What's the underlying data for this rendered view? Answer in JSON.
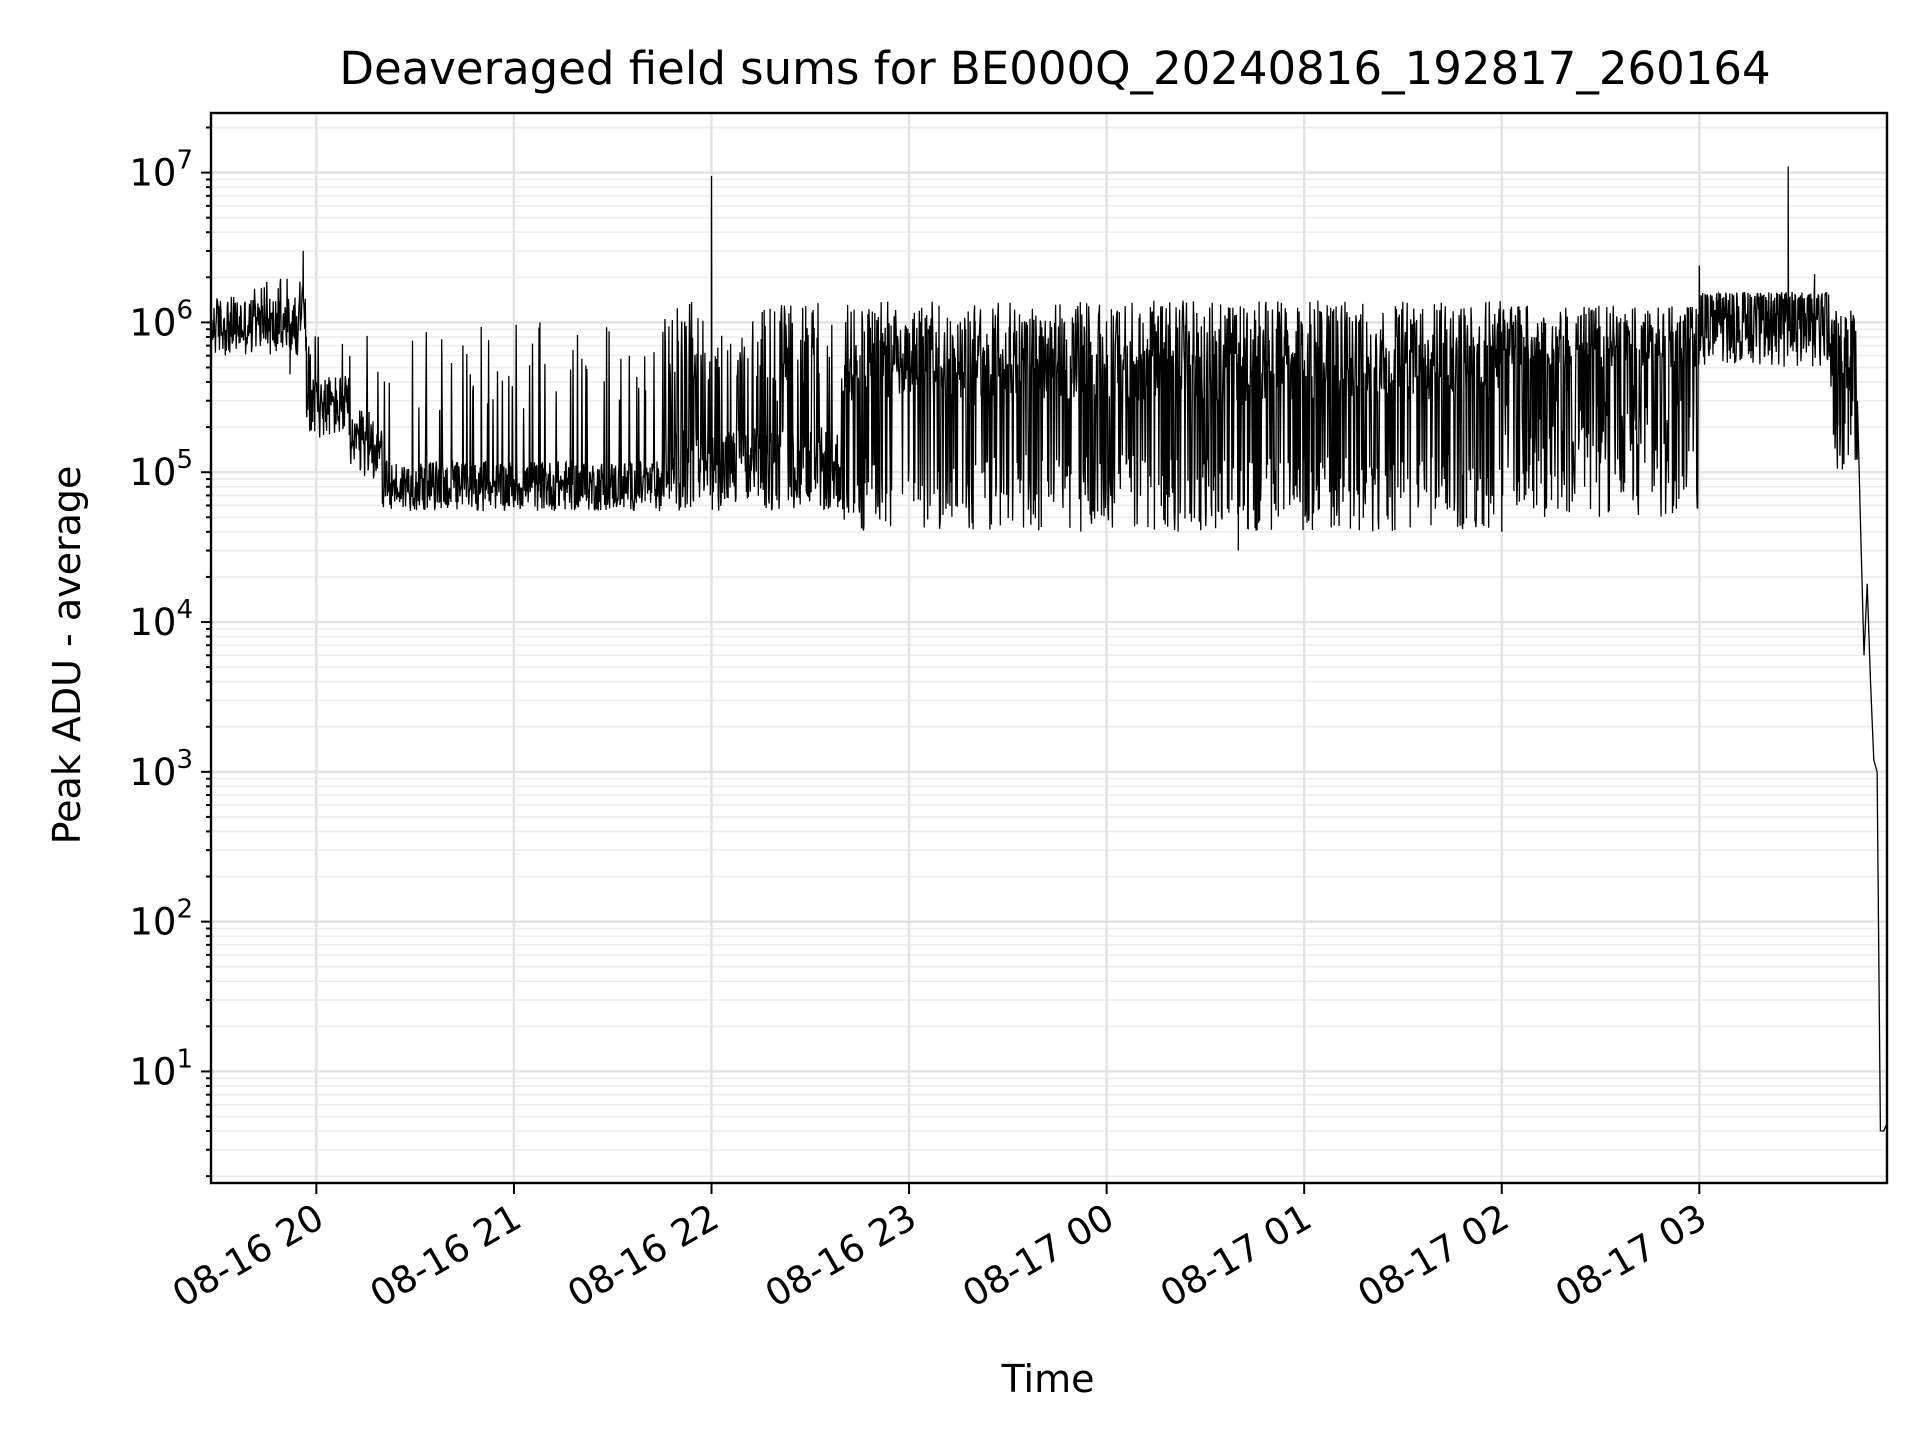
{
  "chart_data": {
    "type": "line",
    "title": "Deaveraged field sums for BE000Q_20240816_192817_260164",
    "xlabel": "Time",
    "ylabel": "Peak ADU - average",
    "yscale": "log",
    "grid": true,
    "line_color": "#000000",
    "x_range": [
      "2024-08-16 19:28",
      "2024-08-17 03:57"
    ],
    "ylim": [
      1.8,
      25000000
    ],
    "x_ticks": [
      {
        "time": "2024-08-16 20:00",
        "label": "08-16 20"
      },
      {
        "time": "2024-08-16 21:00",
        "label": "08-16 21"
      },
      {
        "time": "2024-08-16 22:00",
        "label": "08-16 22"
      },
      {
        "time": "2024-08-16 23:00",
        "label": "08-16 23"
      },
      {
        "time": "2024-08-17 00:00",
        "label": "08-17 00"
      },
      {
        "time": "2024-08-17 01:00",
        "label": "08-17 01"
      },
      {
        "time": "2024-08-17 02:00",
        "label": "08-17 02"
      },
      {
        "time": "2024-08-17 03:00",
        "label": "08-17 03"
      }
    ],
    "y_ticks": [
      {
        "value": 10,
        "base": "10",
        "exp": "1"
      },
      {
        "value": 100,
        "base": "10",
        "exp": "2"
      },
      {
        "value": 1000,
        "base": "10",
        "exp": "3"
      },
      {
        "value": 10000,
        "base": "10",
        "exp": "4"
      },
      {
        "value": 100000,
        "base": "10",
        "exp": "5"
      },
      {
        "value": 1000000,
        "base": "10",
        "exp": "6"
      },
      {
        "value": 10000000,
        "base": "10",
        "exp": "7"
      }
    ],
    "series": [
      {
        "points": [
          [
            "2024-08-16 19:28",
            1000000
          ],
          [
            "2024-08-16 19:31",
            1200000
          ],
          [
            "2024-08-16 19:34",
            800000
          ],
          [
            "2024-08-16 19:37",
            1300000
          ],
          [
            "2024-08-16 19:40",
            900000
          ],
          [
            "2024-08-16 19:43",
            1200000
          ],
          [
            "2024-08-16 19:46",
            700000
          ],
          [
            "2024-08-16 19:49",
            1800000
          ],
          [
            "2024-08-16 19:52",
            450000
          ],
          [
            "2024-08-16 19:54",
            1100000
          ],
          [
            "2024-08-16 19:56",
            3000000
          ],
          [
            "2024-08-16 19:57",
            250000
          ],
          [
            "2024-08-16 20:00",
            400000
          ],
          [
            "2024-08-16 20:04",
            280000
          ],
          [
            "2024-08-16 20:08",
            240000
          ],
          [
            "2024-08-16 20:12",
            180000
          ],
          [
            "2024-08-16 20:16",
            130000
          ],
          [
            "2024-08-16 20:20",
            100000
          ],
          [
            "2024-08-16 20:24",
            75000
          ],
          [
            "2024-08-16 20:30",
            80000
          ],
          [
            "2024-08-16 20:40",
            75000
          ],
          [
            "2024-08-16 20:50",
            85000
          ],
          [
            "2024-08-16 21:00",
            90000
          ],
          [
            "2024-08-16 21:10",
            80000
          ],
          [
            "2024-08-16 21:20",
            75000
          ],
          [
            "2024-08-16 21:30",
            90000
          ],
          [
            "2024-08-16 21:40",
            110000
          ],
          [
            "2024-08-16 21:50",
            140000
          ],
          [
            "2024-08-16 22:00",
            9500000
          ],
          [
            "2024-08-16 22:05",
            250000
          ],
          [
            "2024-08-16 22:20",
            300000
          ],
          [
            "2024-08-16 22:40",
            350000
          ],
          [
            "2024-08-16 23:00",
            300000
          ],
          [
            "2024-08-16 23:20",
            280000
          ],
          [
            "2024-08-16 23:40",
            270000
          ],
          [
            "2024-08-17 00:00",
            250000
          ],
          [
            "2024-08-17 00:20",
            260000
          ],
          [
            "2024-08-17 00:40",
            30000
          ],
          [
            "2024-08-17 00:41",
            280000
          ],
          [
            "2024-08-17 01:00",
            300000
          ],
          [
            "2024-08-17 01:20",
            330000
          ],
          [
            "2024-08-17 01:40",
            300000
          ],
          [
            "2024-08-17 02:00",
            40000
          ],
          [
            "2024-08-17 02:01",
            300000
          ],
          [
            "2024-08-17 02:20",
            350000
          ],
          [
            "2024-08-17 02:40",
            380000
          ],
          [
            "2024-08-17 03:00",
            2400000
          ],
          [
            "2024-08-17 03:05",
            900000
          ],
          [
            "2024-08-17 03:20",
            800000
          ],
          [
            "2024-08-17 03:27",
            11000000
          ],
          [
            "2024-08-17 03:28",
            700000
          ],
          [
            "2024-08-17 03:35",
            2100000
          ],
          [
            "2024-08-17 03:38",
            600000
          ],
          [
            "2024-08-17 03:42",
            250000
          ],
          [
            "2024-08-17 03:46",
            1200000
          ],
          [
            "2024-08-17 03:48",
            300000
          ],
          [
            "2024-08-17 03:49",
            40000
          ],
          [
            "2024-08-17 03:50",
            6000
          ],
          [
            "2024-08-17 03:51",
            18000
          ],
          [
            "2024-08-17 03:52",
            4000
          ],
          [
            "2024-08-17 03:53",
            1200
          ],
          [
            "2024-08-17 03:54",
            1000
          ],
          [
            "2024-08-17 03:55",
            4
          ],
          [
            "2024-08-17 03:56",
            4
          ],
          [
            "2024-08-17 03:57",
            4.5
          ]
        ],
        "noise_bands": [
          {
            "from": "2024-08-16 19:28",
            "to": "2024-08-16 19:57",
            "low": 600000,
            "high": 1500000,
            "spike_max": 2000000,
            "spike_rate": 0.05
          },
          {
            "from": "2024-08-16 19:57",
            "to": "2024-08-16 20:10",
            "low": 170000,
            "high": 450000,
            "spike_max": 900000,
            "spike_rate": 0.08
          },
          {
            "from": "2024-08-16 20:10",
            "to": "2024-08-16 20:20",
            "low": 90000,
            "high": 260000,
            "spike_max": 1100000,
            "spike_rate": 0.05
          },
          {
            "from": "2024-08-16 20:20",
            "to": "2024-08-16 21:45",
            "low": 55000,
            "high": 120000,
            "spike_max": 1000000,
            "spike_rate": 0.07
          },
          {
            "from": "2024-08-16 21:45",
            "to": "2024-08-16 22:40",
            "low": 55000,
            "high": 200000,
            "spike_max": 1400000,
            "spike_rate": 0.28
          },
          {
            "from": "2024-08-16 22:40",
            "to": "2024-08-17 02:00",
            "low": 40000,
            "high": 130000,
            "spike_max": 1400000,
            "spike_rate": 0.7
          },
          {
            "from": "2024-08-17 02:00",
            "to": "2024-08-17 03:00",
            "low": 50000,
            "high": 300000,
            "spike_max": 1300000,
            "spike_rate": 0.55
          },
          {
            "from": "2024-08-17 03:00",
            "to": "2024-08-17 03:40",
            "low": 500000,
            "high": 1300000,
            "spike_max": 1600000,
            "spike_rate": 0.3
          },
          {
            "from": "2024-08-17 03:40",
            "to": "2024-08-17 03:48",
            "low": 100000,
            "high": 600000,
            "spike_max": 1200000,
            "spike_rate": 0.3
          }
        ]
      }
    ]
  }
}
